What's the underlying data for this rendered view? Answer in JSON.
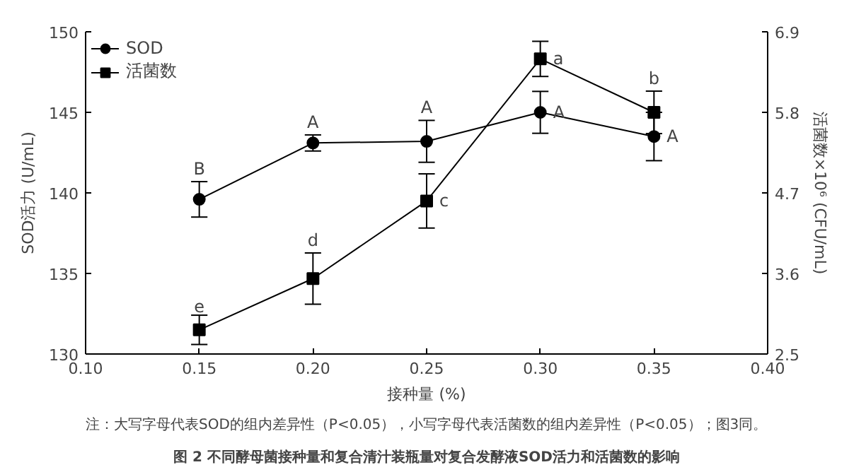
{
  "chart_data": {
    "type": "line",
    "title": "图 2 不同酵母菌接种量和复合清汁装瓶量对复合发酵液SOD活力和活菌数的影响",
    "xlabel": "接种量 (%)",
    "ylabel": "SOD活力 (U/mL)",
    "y2label": "活菌数×10⁶ (CFU/mL)",
    "x": [
      0.15,
      0.2,
      0.25,
      0.3,
      0.35
    ],
    "series": [
      {
        "name": "SOD",
        "color": "#000000",
        "marker": "circle",
        "values": [
          139.6,
          143.1,
          143.2,
          145.0,
          143.5
        ],
        "value_labels": [
          "B",
          "A",
          "A",
          "A",
          "A"
        ],
        "errors": [
          1.1,
          0.5,
          1.3,
          1.3,
          1.5
        ]
      },
      {
        "name": "活菌数",
        "color": "#000000",
        "marker": "square",
        "axis": "y2",
        "values": [
          2.83,
          3.53,
          4.59,
          6.53,
          5.8
        ],
        "value_labels": [
          "e",
          "d",
          "c",
          "a",
          "b"
        ],
        "errors": [
          0.2,
          0.35,
          0.37,
          0.24,
          0.29
        ]
      }
    ],
    "xlim": [
      0.1,
      0.4
    ],
    "xticks": [
      {
        "value": 0.1,
        "label": "0.10"
      },
      0.15,
      {
        "value": 0.2,
        "label": "0.20"
      },
      0.25,
      {
        "value": 0.3,
        "label": "0.30"
      },
      0.35,
      {
        "value": 0.4,
        "label": "0.40"
      }
    ],
    "ylim": [
      130,
      150
    ],
    "yticks": [
      130,
      135,
      140,
      145,
      150
    ],
    "y2lim": [
      2.5,
      6.9
    ],
    "y2ticks": [
      2.5,
      3.6,
      4.7,
      5.8,
      6.9
    ],
    "legend": "top left",
    "grid": false,
    "annotations": [
      "注：大写字母代表SOD的组内差异性（P<0.05），小写字母代表活菌数的组内差异性（P<0.05）；图3同。"
    ]
  }
}
